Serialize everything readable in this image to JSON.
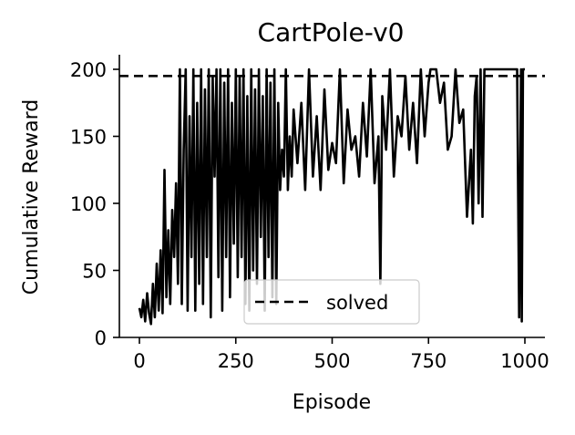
{
  "chart_data": {
    "type": "line",
    "title": "CartPole-v0",
    "xlabel": "Episode",
    "ylabel": "Cumulative Reward",
    "xlim": [
      -30,
      1050
    ],
    "ylim": [
      0,
      210
    ],
    "xticks": [
      0,
      250,
      500,
      750,
      1000
    ],
    "yticks": [
      0,
      50,
      100,
      150,
      200
    ],
    "grid": false,
    "legend_position": "bottom-center",
    "series": [
      {
        "color": "#000000",
        "style": "solid",
        "x": [
          0,
          5,
          10,
          15,
          20,
          25,
          30,
          35,
          40,
          45,
          50,
          55,
          60,
          65,
          70,
          75,
          80,
          85,
          90,
          95,
          100,
          105,
          110,
          115,
          120,
          125,
          130,
          135,
          140,
          145,
          150,
          155,
          160,
          165,
          170,
          175,
          180,
          185,
          190,
          195,
          200,
          205,
          210,
          215,
          220,
          225,
          230,
          235,
          240,
          245,
          250,
          255,
          260,
          265,
          270,
          275,
          280,
          285,
          290,
          295,
          300,
          305,
          310,
          315,
          320,
          325,
          330,
          335,
          340,
          345,
          350,
          355,
          360,
          365,
          370,
          375,
          380,
          385,
          390,
          395,
          400,
          410,
          420,
          430,
          440,
          450,
          460,
          470,
          480,
          490,
          500,
          510,
          520,
          530,
          540,
          550,
          560,
          570,
          580,
          590,
          600,
          610,
          620,
          625,
          630,
          640,
          650,
          660,
          670,
          680,
          690,
          700,
          710,
          720,
          730,
          740,
          750,
          755,
          760,
          770,
          780,
          790,
          800,
          810,
          820,
          830,
          840,
          850,
          860,
          865,
          870,
          875,
          880,
          885,
          890,
          895,
          900,
          940,
          980,
          985,
          990,
          992,
          995,
          1000
        ],
        "values": [
          22,
          15,
          28,
          12,
          33,
          18,
          10,
          40,
          15,
          55,
          20,
          65,
          18,
          125,
          30,
          80,
          25,
          95,
          60,
          115,
          40,
          200,
          25,
          140,
          200,
          20,
          165,
          60,
          200,
          20,
          175,
          40,
          200,
          25,
          185,
          60,
          200,
          15,
          195,
          120,
          200,
          45,
          200,
          20,
          190,
          60,
          200,
          30,
          175,
          70,
          200,
          45,
          195,
          60,
          200,
          25,
          180,
          20,
          200,
          50,
          185,
          40,
          200,
          75,
          180,
          20,
          200,
          60,
          190,
          30,
          200,
          25,
          175,
          110,
          140,
          120,
          200,
          110,
          150,
          120,
          170,
          130,
          175,
          110,
          200,
          120,
          165,
          110,
          185,
          125,
          145,
          130,
          200,
          115,
          170,
          140,
          150,
          120,
          175,
          135,
          200,
          115,
          150,
          40,
          180,
          140,
          200,
          120,
          165,
          150,
          195,
          140,
          175,
          130,
          200,
          150,
          190,
          200,
          200,
          200,
          175,
          190,
          140,
          150,
          200,
          160,
          170,
          90,
          140,
          85,
          180,
          195,
          100,
          200,
          90,
          200,
          200,
          200,
          200,
          15,
          200,
          12,
          200,
          200
        ]
      }
    ],
    "reference_lines": [
      {
        "name": "solved",
        "value": 195,
        "style": "dashed",
        "color": "#000000"
      }
    ]
  }
}
